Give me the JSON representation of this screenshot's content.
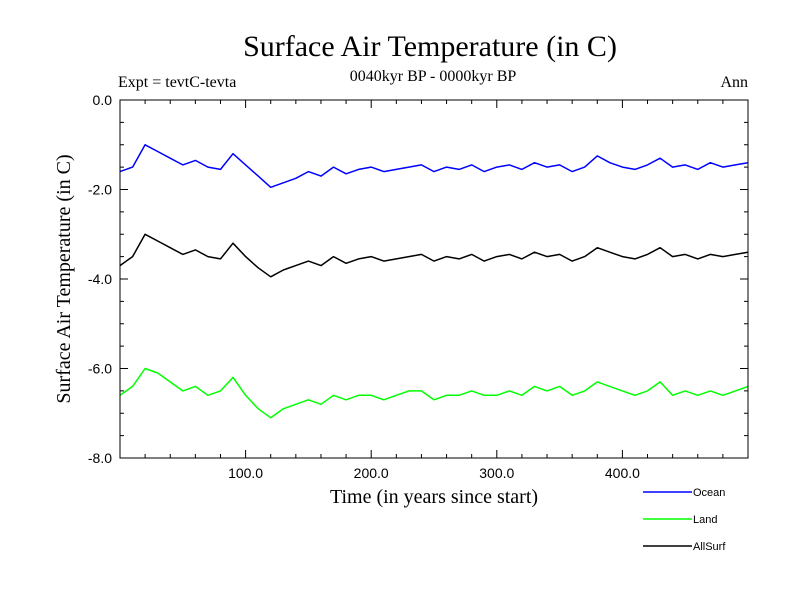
{
  "chart_data": {
    "type": "line",
    "title": "Surface Air Temperature (in C)",
    "subtitle": "0040kyr BP - 0000kyr BP",
    "left_label": "Expt = tevtC-tevta",
    "right_label": "Ann",
    "xlabel": "Time (in years since start)",
    "ylabel": "Surface Air Temperature (in C)",
    "xlim": [
      0,
      500
    ],
    "ylim": [
      -8.0,
      0.0
    ],
    "xticks": [
      100,
      200,
      300,
      400
    ],
    "xtick_labels": [
      "100.0",
      "200.0",
      "300.0",
      "400.0"
    ],
    "yticks": [
      0,
      -2,
      -4,
      -6,
      -8
    ],
    "ytick_labels": [
      "0.0",
      "-2.0",
      "-4.0",
      "-6.0",
      "-8.0"
    ],
    "legend_position": "bottom-right, below plot",
    "series": [
      {
        "name": "Ocean",
        "color": "#0000ff",
        "x": [
          0,
          10,
          20,
          30,
          40,
          50,
          60,
          70,
          80,
          90,
          100,
          110,
          120,
          130,
          140,
          150,
          160,
          170,
          180,
          190,
          200,
          210,
          220,
          230,
          240,
          250,
          260,
          270,
          280,
          290,
          300,
          310,
          320,
          330,
          340,
          350,
          360,
          370,
          380,
          390,
          400,
          410,
          420,
          430,
          440,
          450,
          460,
          470,
          480,
          490,
          500
        ],
        "y": [
          -1.6,
          -1.5,
          -1.0,
          -1.15,
          -1.3,
          -1.45,
          -1.35,
          -1.5,
          -1.55,
          -1.2,
          -1.45,
          -1.7,
          -1.95,
          -1.85,
          -1.75,
          -1.6,
          -1.7,
          -1.5,
          -1.65,
          -1.55,
          -1.5,
          -1.6,
          -1.55,
          -1.5,
          -1.45,
          -1.6,
          -1.5,
          -1.55,
          -1.45,
          -1.6,
          -1.5,
          -1.45,
          -1.55,
          -1.4,
          -1.5,
          -1.45,
          -1.6,
          -1.5,
          -1.25,
          -1.4,
          -1.5,
          -1.55,
          -1.45,
          -1.3,
          -1.5,
          -1.45,
          -1.55,
          -1.4,
          -1.5,
          -1.45,
          -1.4
        ]
      },
      {
        "name": "Land",
        "color": "#00ff00",
        "x": [
          0,
          10,
          20,
          30,
          40,
          50,
          60,
          70,
          80,
          90,
          100,
          110,
          120,
          130,
          140,
          150,
          160,
          170,
          180,
          190,
          200,
          210,
          220,
          230,
          240,
          250,
          260,
          270,
          280,
          290,
          300,
          310,
          320,
          330,
          340,
          350,
          360,
          370,
          380,
          390,
          400,
          410,
          420,
          430,
          440,
          450,
          460,
          470,
          480,
          490,
          500
        ],
        "y": [
          -6.6,
          -6.4,
          -6.0,
          -6.1,
          -6.3,
          -6.5,
          -6.4,
          -6.6,
          -6.5,
          -6.2,
          -6.6,
          -6.9,
          -7.1,
          -6.9,
          -6.8,
          -6.7,
          -6.8,
          -6.6,
          -6.7,
          -6.6,
          -6.6,
          -6.7,
          -6.6,
          -6.5,
          -6.5,
          -6.7,
          -6.6,
          -6.6,
          -6.5,
          -6.6,
          -6.6,
          -6.5,
          -6.6,
          -6.4,
          -6.5,
          -6.4,
          -6.6,
          -6.5,
          -6.3,
          -6.4,
          -6.5,
          -6.6,
          -6.5,
          -6.3,
          -6.6,
          -6.5,
          -6.6,
          -6.5,
          -6.6,
          -6.5,
          -6.4
        ]
      },
      {
        "name": "AllSurf",
        "color": "#000000",
        "x": [
          0,
          10,
          20,
          30,
          40,
          50,
          60,
          70,
          80,
          90,
          100,
          110,
          120,
          130,
          140,
          150,
          160,
          170,
          180,
          190,
          200,
          210,
          220,
          230,
          240,
          250,
          260,
          270,
          280,
          290,
          300,
          310,
          320,
          330,
          340,
          350,
          360,
          370,
          380,
          390,
          400,
          410,
          420,
          430,
          440,
          450,
          460,
          470,
          480,
          490,
          500
        ],
        "y": [
          -3.7,
          -3.5,
          -3.0,
          -3.15,
          -3.3,
          -3.45,
          -3.35,
          -3.5,
          -3.55,
          -3.2,
          -3.5,
          -3.75,
          -3.95,
          -3.8,
          -3.7,
          -3.6,
          -3.7,
          -3.5,
          -3.65,
          -3.55,
          -3.5,
          -3.6,
          -3.55,
          -3.5,
          -3.45,
          -3.6,
          -3.5,
          -3.55,
          -3.45,
          -3.6,
          -3.5,
          -3.45,
          -3.55,
          -3.4,
          -3.5,
          -3.45,
          -3.6,
          -3.5,
          -3.3,
          -3.4,
          -3.5,
          -3.55,
          -3.45,
          -3.3,
          -3.5,
          -3.45,
          -3.55,
          -3.45,
          -3.5,
          -3.45,
          -3.4
        ]
      }
    ]
  }
}
